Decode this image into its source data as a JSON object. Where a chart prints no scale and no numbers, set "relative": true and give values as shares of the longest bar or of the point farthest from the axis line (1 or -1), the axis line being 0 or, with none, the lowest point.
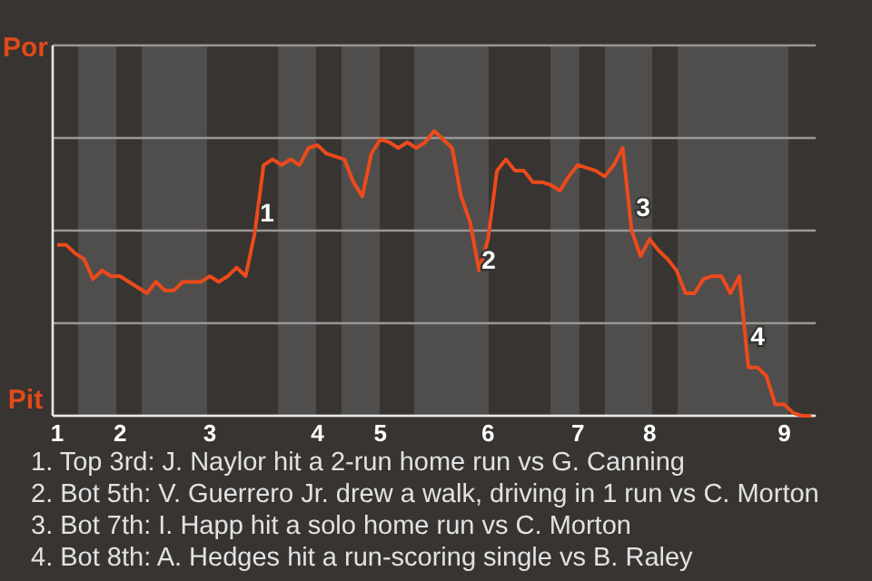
{
  "chart_data": {
    "type": "line",
    "relative": true,
    "categories": [
      "1",
      null,
      null,
      null,
      null,
      null,
      null,
      "2",
      null,
      null,
      null,
      null,
      null,
      null,
      null,
      null,
      null,
      "3",
      null,
      null,
      null,
      null,
      null,
      null,
      null,
      null,
      null,
      null,
      null,
      "4",
      null,
      null,
      null,
      null,
      null,
      null,
      "5",
      null,
      null,
      null,
      null,
      null,
      null,
      null,
      null,
      null,
      null,
      null,
      "6",
      null,
      null,
      null,
      null,
      null,
      null,
      null,
      null,
      null,
      "7",
      null,
      null,
      null,
      null,
      null,
      null,
      null,
      "8",
      null,
      null,
      null,
      null,
      null,
      null,
      null,
      null,
      null,
      null,
      null,
      null,
      null,
      null,
      "9",
      null,
      null,
      null
    ],
    "values": [
      0.6,
      0.6,
      0.57,
      0.55,
      0.48,
      0.51,
      0.49,
      0.49,
      0.47,
      0.45,
      0.43,
      0.47,
      0.44,
      0.44,
      0.47,
      0.47,
      0.47,
      0.49,
      0.47,
      0.49,
      0.52,
      0.49,
      0.64,
      0.88,
      0.9,
      0.88,
      0.9,
      0.88,
      0.94,
      0.95,
      0.92,
      0.91,
      0.9,
      0.82,
      0.77,
      0.92,
      0.97,
      0.96,
      0.94,
      0.96,
      0.94,
      0.96,
      1,
      0.97,
      0.94,
      0.77,
      0.68,
      0.51,
      0.62,
      0.86,
      0.9,
      0.86,
      0.86,
      0.82,
      0.82,
      0.81,
      0.79,
      0.84,
      0.88,
      0.87,
      0.86,
      0.84,
      0.88,
      0.94,
      0.65,
      0.56,
      0.62,
      0.58,
      0.55,
      0.51,
      0.43,
      0.43,
      0.48,
      0.49,
      0.49,
      0.43,
      0.49,
      0.17,
      0.17,
      0.14,
      0.04,
      0.04,
      0.01,
      0,
      0
    ],
    "color": "#ec4a1c",
    "grid": true,
    "annotations": [
      "Por",
      "Pit",
      "1",
      "2",
      "3",
      "4",
      "1. Top 3rd: J. Naylor hit a 2-run home run vs G. Canning",
      "2. Bot 5th: V. Guerrero Jr. drew a walk, driving in 1 run vs C. Morton",
      "3. Bot 7th: I. Happ hit a solo home run vs C. Morton",
      "4. Bot 8th: A. Hedges hit a run-scoring single vs B. Raley"
    ]
  }
}
